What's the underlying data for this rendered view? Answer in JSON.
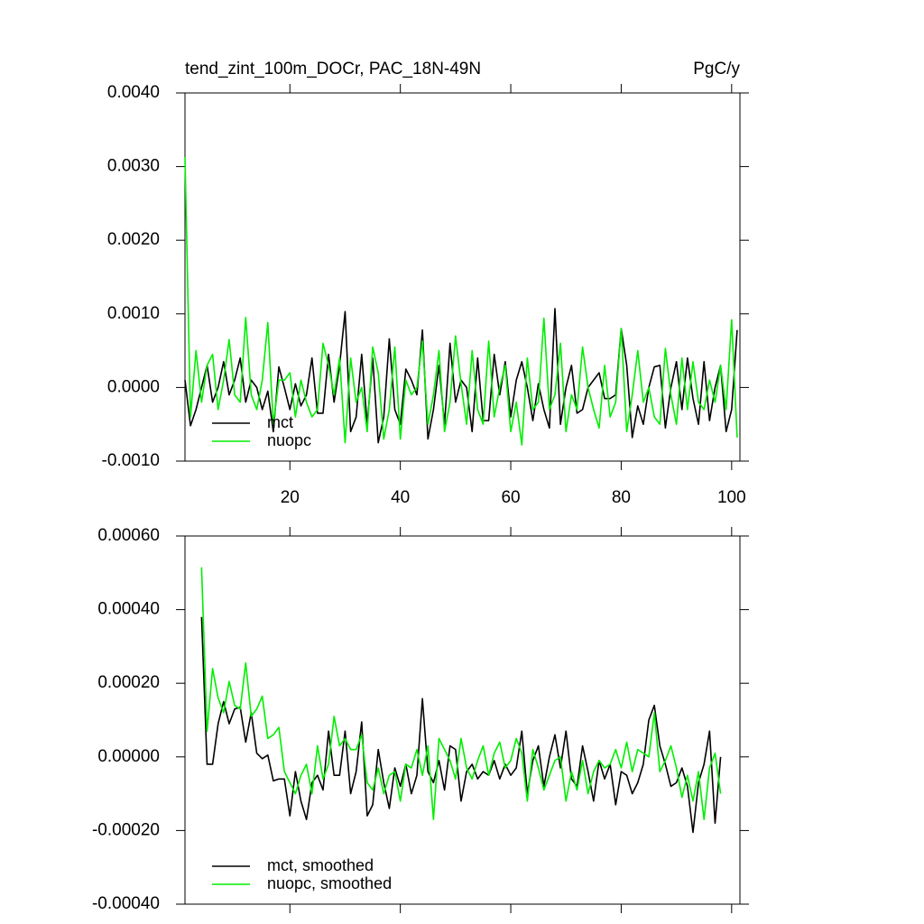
{
  "chart_data": [
    {
      "type": "line",
      "title": "tend_zint_100m_DOCr, PAC_18N-49N",
      "units": "PgC/y",
      "x": [
        1,
        2,
        3,
        4,
        5,
        6,
        7,
        8,
        9,
        10,
        11,
        12,
        13,
        14,
        15,
        16,
        17,
        18,
        19,
        20,
        21,
        22,
        23,
        24,
        25,
        26,
        27,
        28,
        29,
        30,
        31,
        32,
        33,
        34,
        35,
        36,
        37,
        38,
        39,
        40,
        41,
        42,
        43,
        44,
        45,
        46,
        47,
        48,
        49,
        50,
        51,
        52,
        53,
        54,
        55,
        56,
        57,
        58,
        59,
        60,
        61,
        62,
        63,
        64,
        65,
        66,
        67,
        68,
        69,
        70,
        71,
        72,
        73,
        74,
        75,
        76,
        77,
        78,
        79,
        80,
        81,
        82,
        83,
        84,
        85,
        86,
        87,
        88,
        89,
        90,
        91,
        92,
        93,
        94,
        95,
        96,
        97,
        98,
        99,
        100,
        101
      ],
      "series": [
        {
          "name": "mct",
          "color": "#000000",
          "values": [
            0.0001,
            -0.00052,
            -0.0003,
            0,
            0.0003,
            -0.0002,
            0,
            0.00035,
            -0.0001,
            0.0001,
            0.0004,
            -0.0002,
            0.0001,
            0,
            -0.0003,
            -5e-05,
            -0.0006,
            0.00028,
            0,
            -0.0003,
            5e-05,
            -0.00025,
            -0.0001,
            0.0004,
            -0.00035,
            -0.00035,
            0.00045,
            -0.0002,
            0.0003,
            0.00103,
            -0.0006,
            -0.0004,
            0.00045,
            -0.0005,
            0.0004,
            -0.00075,
            -0.0004,
            0.00066,
            -0.0003,
            -0.0005,
            0.00025,
            0.0001,
            -0.0001,
            0.00078,
            -0.0007,
            -0.0003,
            0.0003,
            -0.0005,
            0.0006,
            -0.0002,
            0.0001,
            0,
            -0.0006,
            0.0004,
            -0.00045,
            -0.00045,
            0.00045,
            -0.0001,
            0.00035,
            -0.0004,
            0.0001,
            0.00035,
            0,
            -0.00045,
            5e-05,
            -0.0003,
            -0.00055,
            0.00107,
            -0.0005,
            0,
            0.0003,
            -0.00035,
            -0.0003,
            0,
            0.0001,
            0.0002,
            -0.00015,
            -0.00015,
            -0.0001,
            0.0008,
            0.0003,
            -0.00068,
            -0.00025,
            -0.0005,
            0,
            0.00028,
            0.0003,
            -0.00055,
            0,
            0.00035,
            -0.0003,
            0.0004,
            -0.00015,
            -0.0005,
            0.00035,
            -0.00045,
            0,
            0.0003,
            -0.0006,
            -0.0003,
            0.00078
          ]
        },
        {
          "name": "nuopc",
          "color": "#00ee00",
          "values": [
            0.00313,
            -0.0004,
            0.0005,
            -0.0002,
            0.0003,
            0.00045,
            -0.0003,
            0.0001,
            0.00065,
            -0.0001,
            -0.0002,
            0.00095,
            -0.0001,
            -0.0003,
            0.0001,
            0.00088,
            -0.0005,
            0.0001,
            0.0001,
            0.0002,
            -0.0004,
            0.0001,
            -0.0002,
            -0.0004,
            -0.0003,
            0.0006,
            0.0003,
            -0.0001,
            0.0004,
            -0.00075,
            0.0004,
            -0.0002,
            0,
            -0.0006,
            0.00055,
            0.0002,
            -0.0007,
            -0.0003,
            0.00055,
            -0.0007,
            0.0001,
            -0.0001,
            0,
            0.00063,
            -0.0005,
            -0.0001,
            0.0005,
            -0.0006,
            -0.0002,
            0.0007,
            5e-05,
            -0.0005,
            0.0005,
            -0.0003,
            -0.0005,
            0.00063,
            -0.0004,
            0,
            0.0003,
            -0.0006,
            -0.0002,
            -0.00078,
            0.0004,
            -0.0003,
            -0.0002,
            0.00094,
            -0.0003,
            -0.0001,
            0.0006,
            -0.0006,
            -0.0001,
            -0.0003,
            0.00055,
            0,
            -0.0003,
            -0.00055,
            0.0003,
            -0.0004,
            -0.0002,
            0.0008,
            -0.0006,
            -0.0001,
            0.0005,
            -0.0002,
            0,
            -0.0004,
            -0.0005,
            0.00053,
            -0.0001,
            -0.0005,
            0.0004,
            -0.0003,
            0.00035,
            -0.0002,
            -0.0003,
            0.0001,
            -0.0002,
            0.0003,
            -0.0003,
            0.00092,
            -0.00068
          ]
        }
      ],
      "xlim": [
        1,
        101.5
      ],
      "xticks": [
        20,
        40,
        60,
        80,
        100
      ],
      "xtick_labels": true,
      "ylim": [
        -0.001,
        0.004
      ],
      "yticks": [
        {
          "value": 0.004,
          "label": "0.0040"
        },
        {
          "value": 0.003,
          "label": "0.0030"
        },
        {
          "value": 0.002,
          "label": "0.0020"
        },
        {
          "value": 0.001,
          "label": "0.0010"
        },
        {
          "value": 0,
          "label": "0.0000"
        },
        {
          "value": -0.001,
          "label": "-0.0010"
        }
      ],
      "legend": "lower left"
    },
    {
      "type": "line",
      "x": [
        4,
        5,
        6,
        7,
        8,
        9,
        10,
        11,
        12,
        13,
        14,
        15,
        16,
        17,
        18,
        19,
        20,
        21,
        22,
        23,
        24,
        25,
        26,
        27,
        28,
        29,
        30,
        31,
        32,
        33,
        34,
        35,
        36,
        37,
        38,
        39,
        40,
        41,
        42,
        43,
        44,
        45,
        46,
        47,
        48,
        49,
        50,
        51,
        52,
        53,
        54,
        55,
        56,
        57,
        58,
        59,
        60,
        61,
        62,
        63,
        64,
        65,
        66,
        67,
        68,
        69,
        70,
        71,
        72,
        73,
        74,
        75,
        76,
        77,
        78,
        79,
        80,
        81,
        82,
        83,
        84,
        85,
        86,
        87,
        88,
        89,
        90,
        91,
        92,
        93,
        94,
        95,
        96,
        97,
        98
      ],
      "series": [
        {
          "name": "mct, smoothed",
          "color": "#000000",
          "values": [
            0.00038,
            -2e-05,
            -2e-05,
            9e-05,
            0.00015,
            9e-05,
            0.00013,
            0.000135,
            4e-05,
            0.00012,
            1e-05,
            -5e-06,
            5e-06,
            -6.5e-05,
            -6e-05,
            -6e-05,
            -0.00016,
            -4e-05,
            -0.00012,
            -0.00017,
            -7e-05,
            -5e-05,
            -9e-05,
            7e-05,
            -5e-05,
            -5e-05,
            7e-05,
            -0.0001,
            -4e-05,
            9.5e-05,
            -0.00016,
            -0.00013,
            2e-05,
            -7e-05,
            -0.00014,
            -3e-05,
            -8e-05,
            -2e-05,
            -0.0001,
            -5e-05,
            0.000158,
            -4e-05,
            -7e-05,
            -1e-05,
            -9e-05,
            3e-05,
            2e-05,
            -0.00012,
            -4e-05,
            -2e-05,
            -6e-05,
            -4e-05,
            -5e-05,
            -1e-05,
            -6e-05,
            -2e-05,
            -5e-05,
            -3e-05,
            7e-05,
            -0.0001,
            -1e-05,
            3e-05,
            -8e-05,
            0,
            6e-05,
            -3e-05,
            7e-05,
            -6e-05,
            -8e-05,
            3e-05,
            -4e-05,
            -0.00012,
            -1e-05,
            -6e-05,
            -2e-05,
            -0.00013,
            -4e-05,
            -5e-05,
            -0.0001,
            -7e-05,
            -2e-05,
            0.0001,
            0.00014,
            3e-05,
            -2e-05,
            -8e-05,
            -7e-05,
            -3e-05,
            -8e-05,
            -0.000205,
            -7e-05,
            -2e-05,
            7e-05,
            -0.00018,
            0
          ]
        },
        {
          "name": "nuopc, smoothed",
          "color": "#00ee00",
          "values": [
            0.000515,
            7e-05,
            0.00024,
            0.00016,
            0.00012,
            0.000205,
            0.00014,
            0.00013,
            0.000255,
            0.00011,
            0.00013,
            0.000165,
            5e-05,
            6e-05,
            8e-05,
            -4e-05,
            -7e-05,
            -0.0001,
            -5e-05,
            -2e-05,
            -0.0001,
            3e-05,
            -6e-05,
            -2e-05,
            0.00011,
            3e-05,
            5e-05,
            2e-05,
            2e-05,
            6e-05,
            -7e-05,
            -9e-05,
            -3e-05,
            -0.0001,
            -5e-05,
            -4e-05,
            -0.00012,
            -2e-05,
            -3e-05,
            2e-05,
            -5e-05,
            3e-05,
            -0.00017,
            5e-05,
            2e-05,
            -1e-05,
            -6e-05,
            5e-05,
            -3e-05,
            -6e-05,
            -1e-05,
            3e-05,
            -5e-05,
            1e-05,
            4e-05,
            -3e-05,
            -1e-05,
            5e-05,
            1e-05,
            -0.00012,
            2e-05,
            -3e-05,
            -9e-05,
            -5e-05,
            -1e-05,
            0,
            -0.00012,
            -4e-05,
            -9e-05,
            -1e-05,
            -0.0001,
            -4e-05,
            -1e-05,
            -3e-05,
            -2e-05,
            2e-05,
            -3e-05,
            4e-05,
            -4e-05,
            2e-05,
            1e-05,
            0,
            0.00012,
            -4e-05,
            -1e-05,
            3e-05,
            -3e-05,
            -0.00011,
            -5e-05,
            -0.00012,
            -4e-05,
            -0.00017,
            -3e-05,
            1e-05,
            -0.0001
          ]
        }
      ],
      "xlim": [
        1,
        101.5
      ],
      "xticks": [
        20,
        40,
        60,
        80,
        100
      ],
      "xtick_labels": false,
      "ylim": [
        -0.0004,
        0.0006
      ],
      "yticks": [
        {
          "value": 0.0006,
          "label": "0.00060"
        },
        {
          "value": 0.0004,
          "label": "0.00040"
        },
        {
          "value": 0.0002,
          "label": "0.00020"
        },
        {
          "value": 0,
          "label": "0.00000"
        },
        {
          "value": -0.0002,
          "label": "-0.00020"
        },
        {
          "value": -0.0004,
          "label": "-0.00040"
        }
      ],
      "legend": "lower left"
    }
  ]
}
